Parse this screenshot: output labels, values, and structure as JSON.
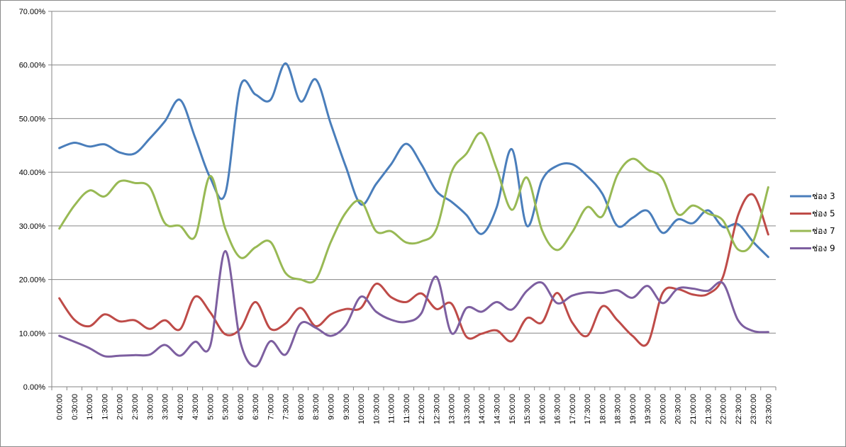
{
  "chart_data": {
    "type": "line",
    "title": "",
    "xlabel": "",
    "ylabel": "",
    "ylim": [
      0,
      70
    ],
    "y_ticks": [
      "0.00%",
      "10.00%",
      "20.00%",
      "30.00%",
      "40.00%",
      "50.00%",
      "60.00%",
      "70.00%"
    ],
    "grid": true,
    "legend_position": "right",
    "x": [
      "0:00:00",
      "0:30:00",
      "1:00:00",
      "1:30:00",
      "2:00:00",
      "2:30:00",
      "3:00:00",
      "3:30:00",
      "4:00:00",
      "4:30:00",
      "5:00:00",
      "5:30:00",
      "6:00:00",
      "6:30:00",
      "7:00:00",
      "7:30:00",
      "8:00:00",
      "8:30:00",
      "9:00:00",
      "9:30:00",
      "10:00:00",
      "10:30:00",
      "11:00:00",
      "11:30:00",
      "12:00:00",
      "12:30:00",
      "13:00:00",
      "13:30:00",
      "14:00:00",
      "14:30:00",
      "15:00:00",
      "15:30:00",
      "16:00:00",
      "16:30:00",
      "17:00:00",
      "17:30:00",
      "18:00:00",
      "18:30:00",
      "19:00:00",
      "19:30:00",
      "20:00:00",
      "20:30:00",
      "21:00:00",
      "21:30:00",
      "22:00:00",
      "22:30:00",
      "23:00:00",
      "23:30:00"
    ],
    "series": [
      {
        "name": "ช่อง 3",
        "color": "#4a7ebb",
        "values": [
          44.5,
          45.5,
          44.8,
          45.2,
          43.7,
          43.5,
          46.3,
          49.5,
          53.5,
          46.5,
          39.0,
          36.0,
          56.0,
          54.5,
          53.5,
          60.3,
          53.2,
          57.3,
          49.0,
          41.0,
          34.0,
          37.8,
          41.5,
          45.3,
          41.5,
          36.5,
          34.5,
          32.0,
          28.5,
          33.5,
          44.3,
          30.0,
          38.5,
          41.2,
          41.5,
          39.3,
          36.0,
          30.0,
          31.5,
          32.8,
          28.7,
          31.2,
          30.5,
          32.9,
          29.8,
          30.3,
          27.0,
          24.2
        ]
      },
      {
        "name": "ช่อง 5",
        "color": "#be4b48",
        "values": [
          16.5,
          12.5,
          11.3,
          13.5,
          12.2,
          12.4,
          10.8,
          12.4,
          10.7,
          16.8,
          13.9,
          9.8,
          10.8,
          15.8,
          10.8,
          11.8,
          14.7,
          11.3,
          13.5,
          14.5,
          14.7,
          19.2,
          16.7,
          15.8,
          17.4,
          14.5,
          15.5,
          9.3,
          9.9,
          10.5,
          8.5,
          12.8,
          12.0,
          17.5,
          12.0,
          9.5,
          15.0,
          12.4,
          9.5,
          8.1,
          17.5,
          18.2,
          17.2,
          17.3,
          20.5,
          32.0,
          35.8,
          28.4
        ]
      },
      {
        "name": "ช่อง 7",
        "color": "#98b954",
        "values": [
          29.5,
          33.8,
          36.6,
          35.5,
          38.3,
          38.0,
          37.2,
          30.5,
          30.0,
          28.0,
          39.3,
          29.5,
          24.1,
          26.0,
          27.0,
          21.2,
          20.0,
          20.0,
          27.0,
          32.5,
          34.6,
          29.0,
          29.0,
          26.9,
          27.1,
          29.4,
          40.0,
          43.5,
          47.3,
          40.6,
          33.0,
          39.0,
          29.2,
          25.5,
          28.8,
          33.5,
          31.8,
          39.5,
          42.5,
          40.5,
          38.8,
          32.2,
          33.8,
          32.3,
          31.0,
          25.6,
          27.1,
          37.2
        ]
      },
      {
        "name": "ช่อง 9",
        "color": "#7d5fa0",
        "values": [
          9.5,
          8.4,
          7.2,
          5.7,
          5.8,
          5.9,
          6.0,
          7.8,
          5.8,
          8.4,
          7.6,
          25.3,
          8.4,
          3.8,
          8.5,
          6.0,
          11.8,
          11.0,
          9.5,
          11.5,
          16.8,
          14.0,
          12.5,
          12.1,
          13.7,
          20.5,
          10.0,
          14.7,
          14.0,
          15.8,
          14.4,
          17.9,
          19.4,
          15.6,
          17.0,
          17.6,
          17.5,
          18.0,
          16.6,
          18.8,
          15.6,
          18.3,
          18.3,
          17.9,
          19.3,
          12.4,
          10.4,
          10.2
        ]
      }
    ]
  }
}
